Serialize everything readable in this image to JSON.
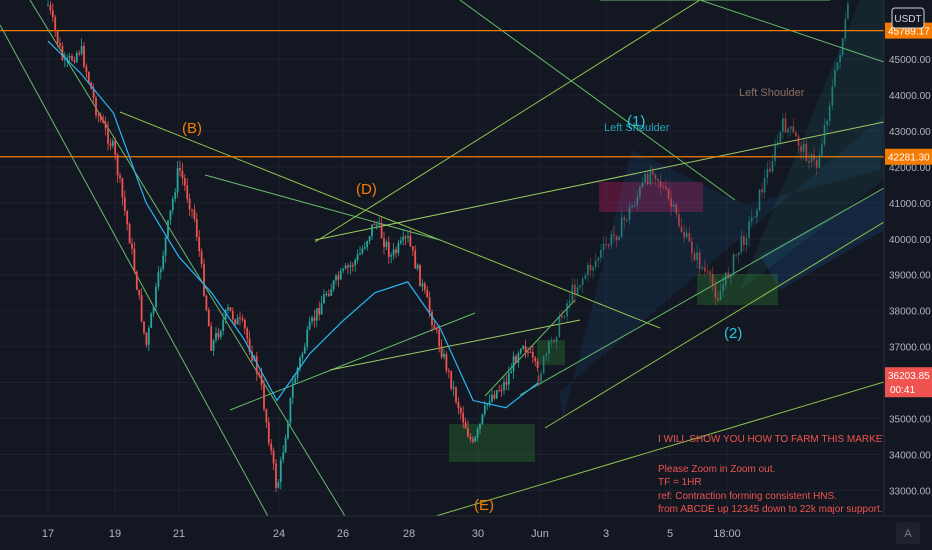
{
  "currency_badge": "USDT",
  "chart_data": {
    "type": "line",
    "subtype": "candlestick-with-moving-averages",
    "title": "",
    "xlabel": "",
    "ylabel": "",
    "x_ticks": [
      "17",
      "19",
      "21",
      "24",
      "26",
      "28",
      "30",
      "Jun",
      "3",
      "5",
      "18:00"
    ],
    "y_ticks": [
      33000,
      34000,
      35000,
      36000,
      37000,
      38000,
      39000,
      40000,
      41000,
      42000,
      43000,
      44000,
      45000
    ],
    "y_tick_labels": [
      "33000.00",
      "34000.00",
      "35000.00",
      "36000.00",
      "37000.00",
      "38000.00",
      "39000.00",
      "40000.00",
      "41000.00",
      "42000.00",
      "43000.00",
      "44000.00",
      "45000.00"
    ],
    "ylim": [
      32500,
      46900
    ],
    "grid": true,
    "price_scale_tags": [
      {
        "value": 45789.17,
        "label": "45789.17",
        "style": "resistance"
      },
      {
        "value": 42281.3,
        "label": "42281.30",
        "style": "resistance"
      },
      {
        "value": 36203.85,
        "label": "36203.85",
        "style": "last"
      }
    ],
    "countdown": "00:41",
    "horizontal_lines": [
      {
        "value": 45789.17,
        "color": "#f57c00"
      },
      {
        "value": 42281.3,
        "color": "#f57c00"
      }
    ],
    "series": [
      {
        "name": "",
        "kind": "price",
        "x": [
          "17",
          "17.5",
          "18",
          "18.5",
          "19",
          "19.5",
          "20",
          "20.5",
          "21",
          "21.5",
          "22",
          "22.5",
          "23",
          "23.5",
          "24",
          "24.5",
          "25",
          "25.5",
          "26",
          "26.5",
          "27",
          "27.5",
          "28",
          "28.5",
          "29",
          "29.5",
          "30",
          "30.5",
          "31",
          "31.5",
          "Jun"
        ],
        "values": [
          46500,
          44800,
          45300,
          43500,
          42500,
          40000,
          37000,
          39500,
          42000,
          40500,
          37000,
          38000,
          37500,
          36000,
          33000,
          36000,
          37500,
          38500,
          39000,
          39500,
          40500,
          39500,
          40000,
          38500,
          37000,
          35500,
          34200,
          35600,
          36000,
          37200,
          36200
        ]
      },
      {
        "name": "",
        "kind": "moving-average",
        "x": [
          "17",
          "18",
          "19",
          "20",
          "21",
          "22",
          "23",
          "24",
          "25",
          "26",
          "27",
          "28",
          "29",
          "30",
          "31",
          "Jun"
        ],
        "values": [
          45500,
          44600,
          43500,
          41000,
          39500,
          38500,
          37200,
          35500,
          36800,
          37700,
          38500,
          38800,
          37500,
          35500,
          35300,
          36000
        ]
      }
    ],
    "projection": [
      {
        "x": "Jun",
        "y": 36200
      },
      {
        "x": "2",
        "y": 38500
      },
      {
        "x": "3.5",
        "y": 40300
      },
      {
        "x": "4.5",
        "y": 42000
      },
      {
        "x": "5.5",
        "y": 40000
      },
      {
        "x": "6.5",
        "y": 38400
      },
      {
        "x": "7.5",
        "y": 40500
      },
      {
        "x": "8.5",
        "y": 43200
      },
      {
        "x": "9.5",
        "y": 42000
      },
      {
        "x": "10.5",
        "y": 46500
      }
    ],
    "wave_labels": [
      {
        "text": "(B)",
        "x": "20.5",
        "y": 43000,
        "color": "#f57c00"
      },
      {
        "text": "(D)",
        "x": "26.5",
        "y": 41400,
        "color": "#f57c00"
      },
      {
        "text": "(E)",
        "x": "30",
        "y": 33000,
        "color": "#f57c00"
      },
      {
        "text": "(1)",
        "x": "4",
        "y": 43200,
        "color": "#26c6da"
      },
      {
        "text": "(2)",
        "x": "6.5",
        "y": 37500,
        "color": "#26c6da"
      }
    ],
    "pattern_labels": [
      {
        "text": "Left Shoulder",
        "color": "#26c6da"
      },
      {
        "text": "Left Shoulder",
        "color": "#8d6e63"
      }
    ],
    "annotation_text": [
      "I WILL SHOW YOU HOW TO FARM THIS MARKET!!!",
      "",
      "Please Zoom in Zoom out.",
      "TF = 1HR",
      "ref: Contraction forming consistent HNS.",
      "from ABCDE up 12345 down to 22k major support."
    ],
    "log_toggle": "A"
  }
}
